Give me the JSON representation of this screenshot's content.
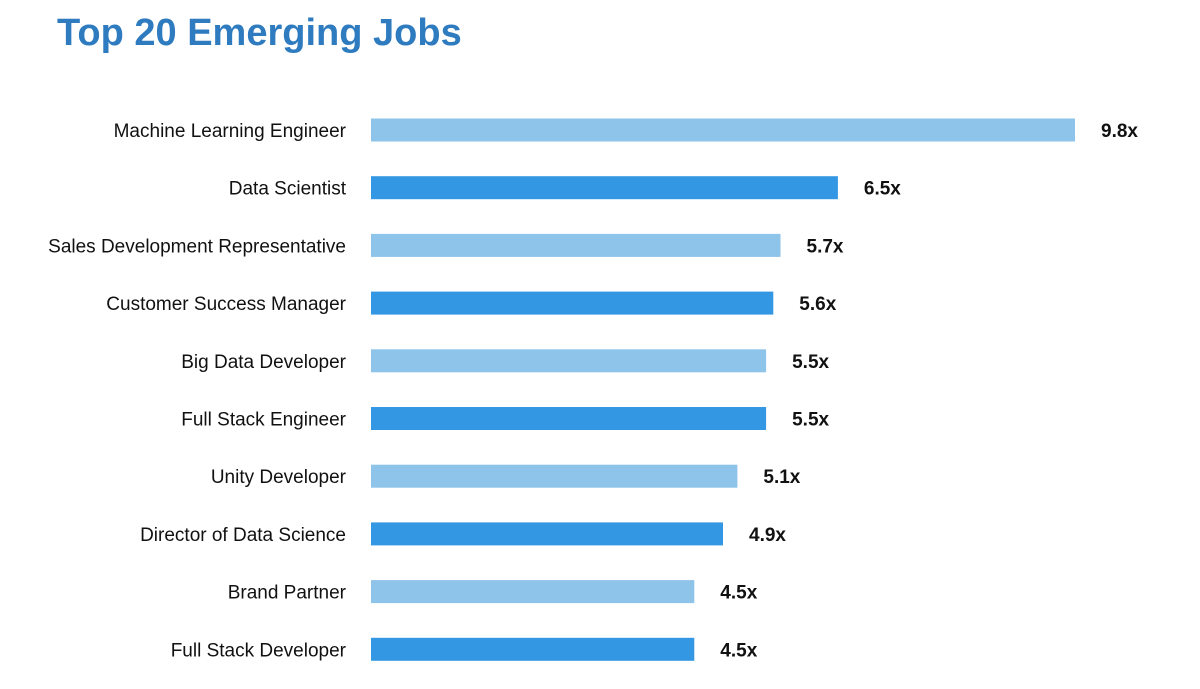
{
  "chart_data": {
    "type": "bar",
    "orientation": "horizontal",
    "title": "Top 20 Emerging Jobs",
    "categories": [
      "Machine Learning Engineer",
      "Data Scientist",
      "Sales Development Representative",
      "Customer Success Manager",
      "Big Data Developer",
      "Full Stack Engineer",
      "Unity Developer",
      "Director of Data Science",
      "Brand Partner",
      "Full Stack Developer"
    ],
    "values": [
      9.8,
      6.5,
      5.7,
      5.6,
      5.5,
      5.5,
      5.1,
      4.9,
      4.5,
      4.5
    ],
    "value_labels": [
      "9.8x",
      "6.5x",
      "5.7x",
      "5.6x",
      "5.5x",
      "5.5x",
      "5.1x",
      "4.9x",
      "4.5x",
      "4.5x"
    ],
    "xlim": [
      0,
      9.8
    ],
    "grid": false,
    "legend": "none",
    "colors": {
      "bar_light": "#8ec3ea",
      "bar_dark": "#3497e3",
      "title": "#2e7bbf",
      "text": "#111111"
    }
  }
}
